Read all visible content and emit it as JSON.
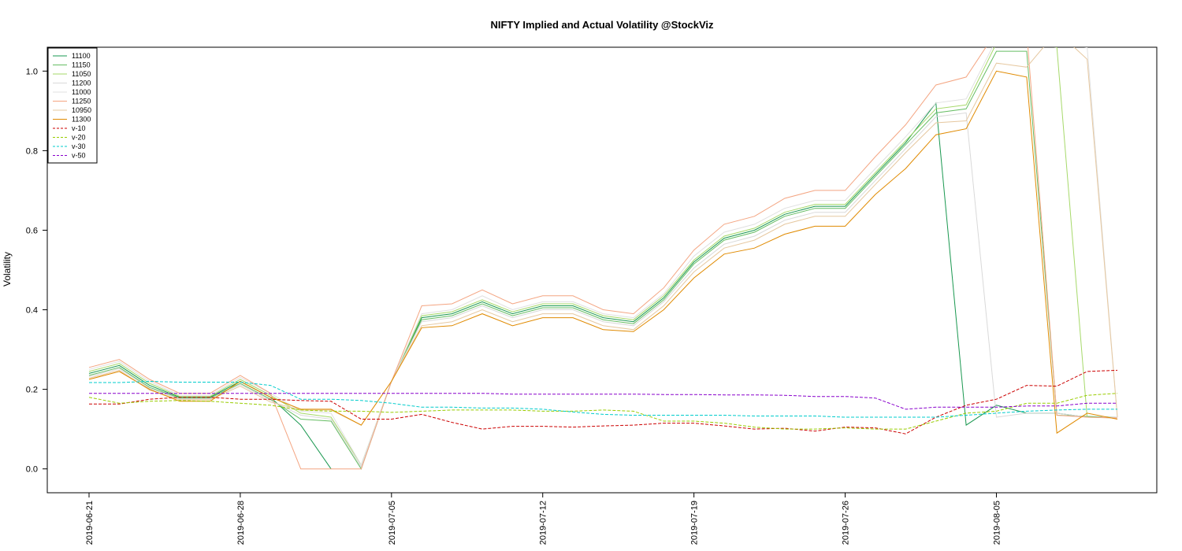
{
  "chart_data": {
    "type": "line",
    "title": "NIFTY Implied and Actual Volatility @StockViz",
    "xlabel": "",
    "ylabel": "Volatility",
    "ylim": [
      -0.06,
      1.06
    ],
    "yticks": [
      "0.0",
      "0.2",
      "0.4",
      "0.6",
      "0.8",
      "1.0"
    ],
    "yticks_values": [
      0,
      0.2,
      0.4,
      0.6,
      0.8,
      1.0
    ],
    "xticks": [
      "2019-06-21",
      "2019-06-28",
      "2019-07-05",
      "2019-07-12",
      "2019-07-19",
      "2019-07-26",
      "2019-08-05"
    ],
    "xticks_index": [
      0,
      5,
      10,
      15,
      20,
      25,
      30
    ],
    "x_count": 35,
    "grid": false,
    "legend_position": "top-left",
    "series": [
      {
        "name": "11100",
        "color": "#1a9850",
        "dash": "solid",
        "values": [
          0.24,
          0.26,
          0.21,
          0.18,
          0.18,
          0.22,
          0.18,
          0.11,
          0.0,
          null,
          0.22,
          0.38,
          0.39,
          0.42,
          0.39,
          0.41,
          0.41,
          0.38,
          0.37,
          0.43,
          0.52,
          0.58,
          0.6,
          0.64,
          0.66,
          0.66,
          0.74,
          0.82,
          0.92,
          0.11,
          0.16,
          0.14,
          0.14,
          0.13,
          0.13
        ]
      },
      {
        "name": "11150",
        "color": "#66bd63",
        "dash": "solid",
        "values": [
          0.235,
          0.255,
          0.205,
          0.178,
          0.178,
          0.215,
          0.175,
          0.125,
          0.12,
          0.0,
          0.22,
          0.375,
          0.385,
          0.415,
          0.385,
          0.405,
          0.405,
          0.375,
          0.365,
          0.425,
          0.515,
          0.575,
          0.595,
          0.635,
          0.655,
          0.655,
          0.735,
          0.815,
          0.895,
          0.905,
          1.05,
          1.05,
          0.135,
          0.132,
          0.13
        ]
      },
      {
        "name": "11050",
        "color": "#a6d96a",
        "dash": "solid",
        "values": [
          0.245,
          0.265,
          0.215,
          0.182,
          0.182,
          0.225,
          0.185,
          0.14,
          0.13,
          0.01,
          0.22,
          0.385,
          0.395,
          0.425,
          0.395,
          0.415,
          0.415,
          0.385,
          0.375,
          0.435,
          0.525,
          0.585,
          0.605,
          0.645,
          0.665,
          0.665,
          0.745,
          0.825,
          0.905,
          0.915,
          1.07,
          1.07,
          1.06,
          0.13,
          0.128
        ]
      },
      {
        "name": "11200",
        "color": "#d9d9d9",
        "dash": "solid",
        "values": [
          0.232,
          0.252,
          0.202,
          0.176,
          0.176,
          0.212,
          0.172,
          0.135,
          0.125,
          0.005,
          0.22,
          0.37,
          0.38,
          0.41,
          0.38,
          0.4,
          0.4,
          0.37,
          0.36,
          0.42,
          0.505,
          0.565,
          0.585,
          0.625,
          0.645,
          0.645,
          0.725,
          0.805,
          0.885,
          0.895,
          0.13,
          0.14,
          0.14,
          0.13,
          0.13
        ]
      },
      {
        "name": "11000",
        "color": "#e0e0e0",
        "dash": "solid",
        "values": [
          0.25,
          0.27,
          0.22,
          0.185,
          0.185,
          0.23,
          0.19,
          0.145,
          0.14,
          0.01,
          0.22,
          0.39,
          0.4,
          0.435,
          0.4,
          0.42,
          0.42,
          0.39,
          0.38,
          0.44,
          0.535,
          0.595,
          0.615,
          0.655,
          0.675,
          0.675,
          0.755,
          0.835,
          0.92,
          0.93,
          1.08,
          1.08,
          1.07,
          1.06,
          0.13
        ]
      },
      {
        "name": "11250",
        "color": "#f4a582",
        "dash": "solid",
        "values": [
          0.255,
          0.275,
          0.225,
          0.19,
          0.19,
          0.235,
          0.19,
          0.0,
          0.0,
          0.0,
          0.22,
          0.41,
          0.415,
          0.45,
          0.415,
          0.435,
          0.435,
          0.4,
          0.39,
          0.455,
          0.55,
          0.615,
          0.635,
          0.68,
          0.7,
          0.7,
          0.785,
          0.865,
          0.965,
          0.985,
          1.1,
          1.1,
          0.135,
          0.13,
          0.128
        ]
      },
      {
        "name": "10950",
        "color": "#e6c8a0",
        "dash": "solid",
        "values": [
          0.228,
          0.248,
          0.198,
          0.174,
          0.174,
          0.208,
          0.168,
          0.148,
          0.148,
          0.11,
          0.22,
          0.36,
          0.37,
          0.4,
          0.37,
          0.39,
          0.39,
          0.36,
          0.35,
          0.41,
          0.495,
          0.555,
          0.575,
          0.615,
          0.635,
          0.635,
          0.715,
          0.795,
          0.87,
          0.875,
          1.02,
          1.01,
          1.1,
          1.03,
          0.13
        ]
      },
      {
        "name": "11300",
        "color": "#e08a00",
        "dash": "solid",
        "values": [
          0.225,
          0.245,
          0.2,
          0.17,
          0.17,
          0.22,
          0.18,
          0.15,
          0.15,
          0.11,
          0.22,
          0.355,
          0.36,
          0.39,
          0.36,
          0.38,
          0.38,
          0.35,
          0.345,
          0.4,
          0.48,
          0.54,
          0.555,
          0.59,
          0.61,
          0.61,
          0.69,
          0.755,
          0.84,
          0.855,
          1.0,
          0.985,
          0.09,
          0.14,
          0.125
        ]
      },
      {
        "name": "v-10",
        "color": "#cc0000",
        "dash": "dashed",
        "values": [
          0.163,
          0.163,
          0.175,
          0.18,
          0.18,
          0.175,
          0.175,
          0.172,
          0.17,
          0.125,
          0.125,
          0.137,
          0.117,
          0.1,
          0.107,
          0.107,
          0.105,
          0.108,
          0.11,
          0.115,
          0.115,
          0.108,
          0.1,
          0.102,
          0.095,
          0.105,
          0.103,
          0.088,
          0.13,
          0.16,
          0.175,
          0.21,
          0.208,
          0.245,
          0.248
        ]
      },
      {
        "name": "v-20",
        "color": "#99cc00",
        "dash": "dashed",
        "values": [
          0.18,
          0.165,
          0.17,
          0.172,
          0.17,
          0.165,
          0.16,
          0.148,
          0.145,
          0.145,
          0.142,
          0.145,
          0.148,
          0.148,
          0.148,
          0.145,
          0.145,
          0.148,
          0.145,
          0.12,
          0.12,
          0.115,
          0.105,
          0.1,
          0.1,
          0.103,
          0.1,
          0.1,
          0.12,
          0.14,
          0.145,
          0.165,
          0.165,
          0.185,
          0.19
        ]
      },
      {
        "name": "v-30",
        "color": "#00cccc",
        "dash": "dashed",
        "values": [
          0.217,
          0.217,
          0.22,
          0.218,
          0.218,
          0.218,
          0.21,
          0.175,
          0.175,
          0.172,
          0.165,
          0.155,
          0.155,
          0.153,
          0.153,
          0.15,
          0.143,
          0.137,
          0.135,
          0.135,
          0.135,
          0.135,
          0.133,
          0.133,
          0.133,
          0.13,
          0.13,
          0.13,
          0.13,
          0.135,
          0.14,
          0.145,
          0.148,
          0.15,
          0.15
        ]
      },
      {
        "name": "v-50",
        "color": "#8800cc",
        "dash": "dashed",
        "values": [
          0.19,
          0.19,
          0.19,
          0.19,
          0.19,
          0.19,
          0.19,
          0.19,
          0.19,
          0.19,
          0.19,
          0.19,
          0.19,
          0.19,
          0.188,
          0.188,
          0.188,
          0.188,
          0.188,
          0.187,
          0.187,
          0.186,
          0.186,
          0.185,
          0.182,
          0.182,
          0.178,
          0.15,
          0.155,
          0.155,
          0.155,
          0.158,
          0.158,
          0.165,
          0.165
        ]
      }
    ]
  }
}
